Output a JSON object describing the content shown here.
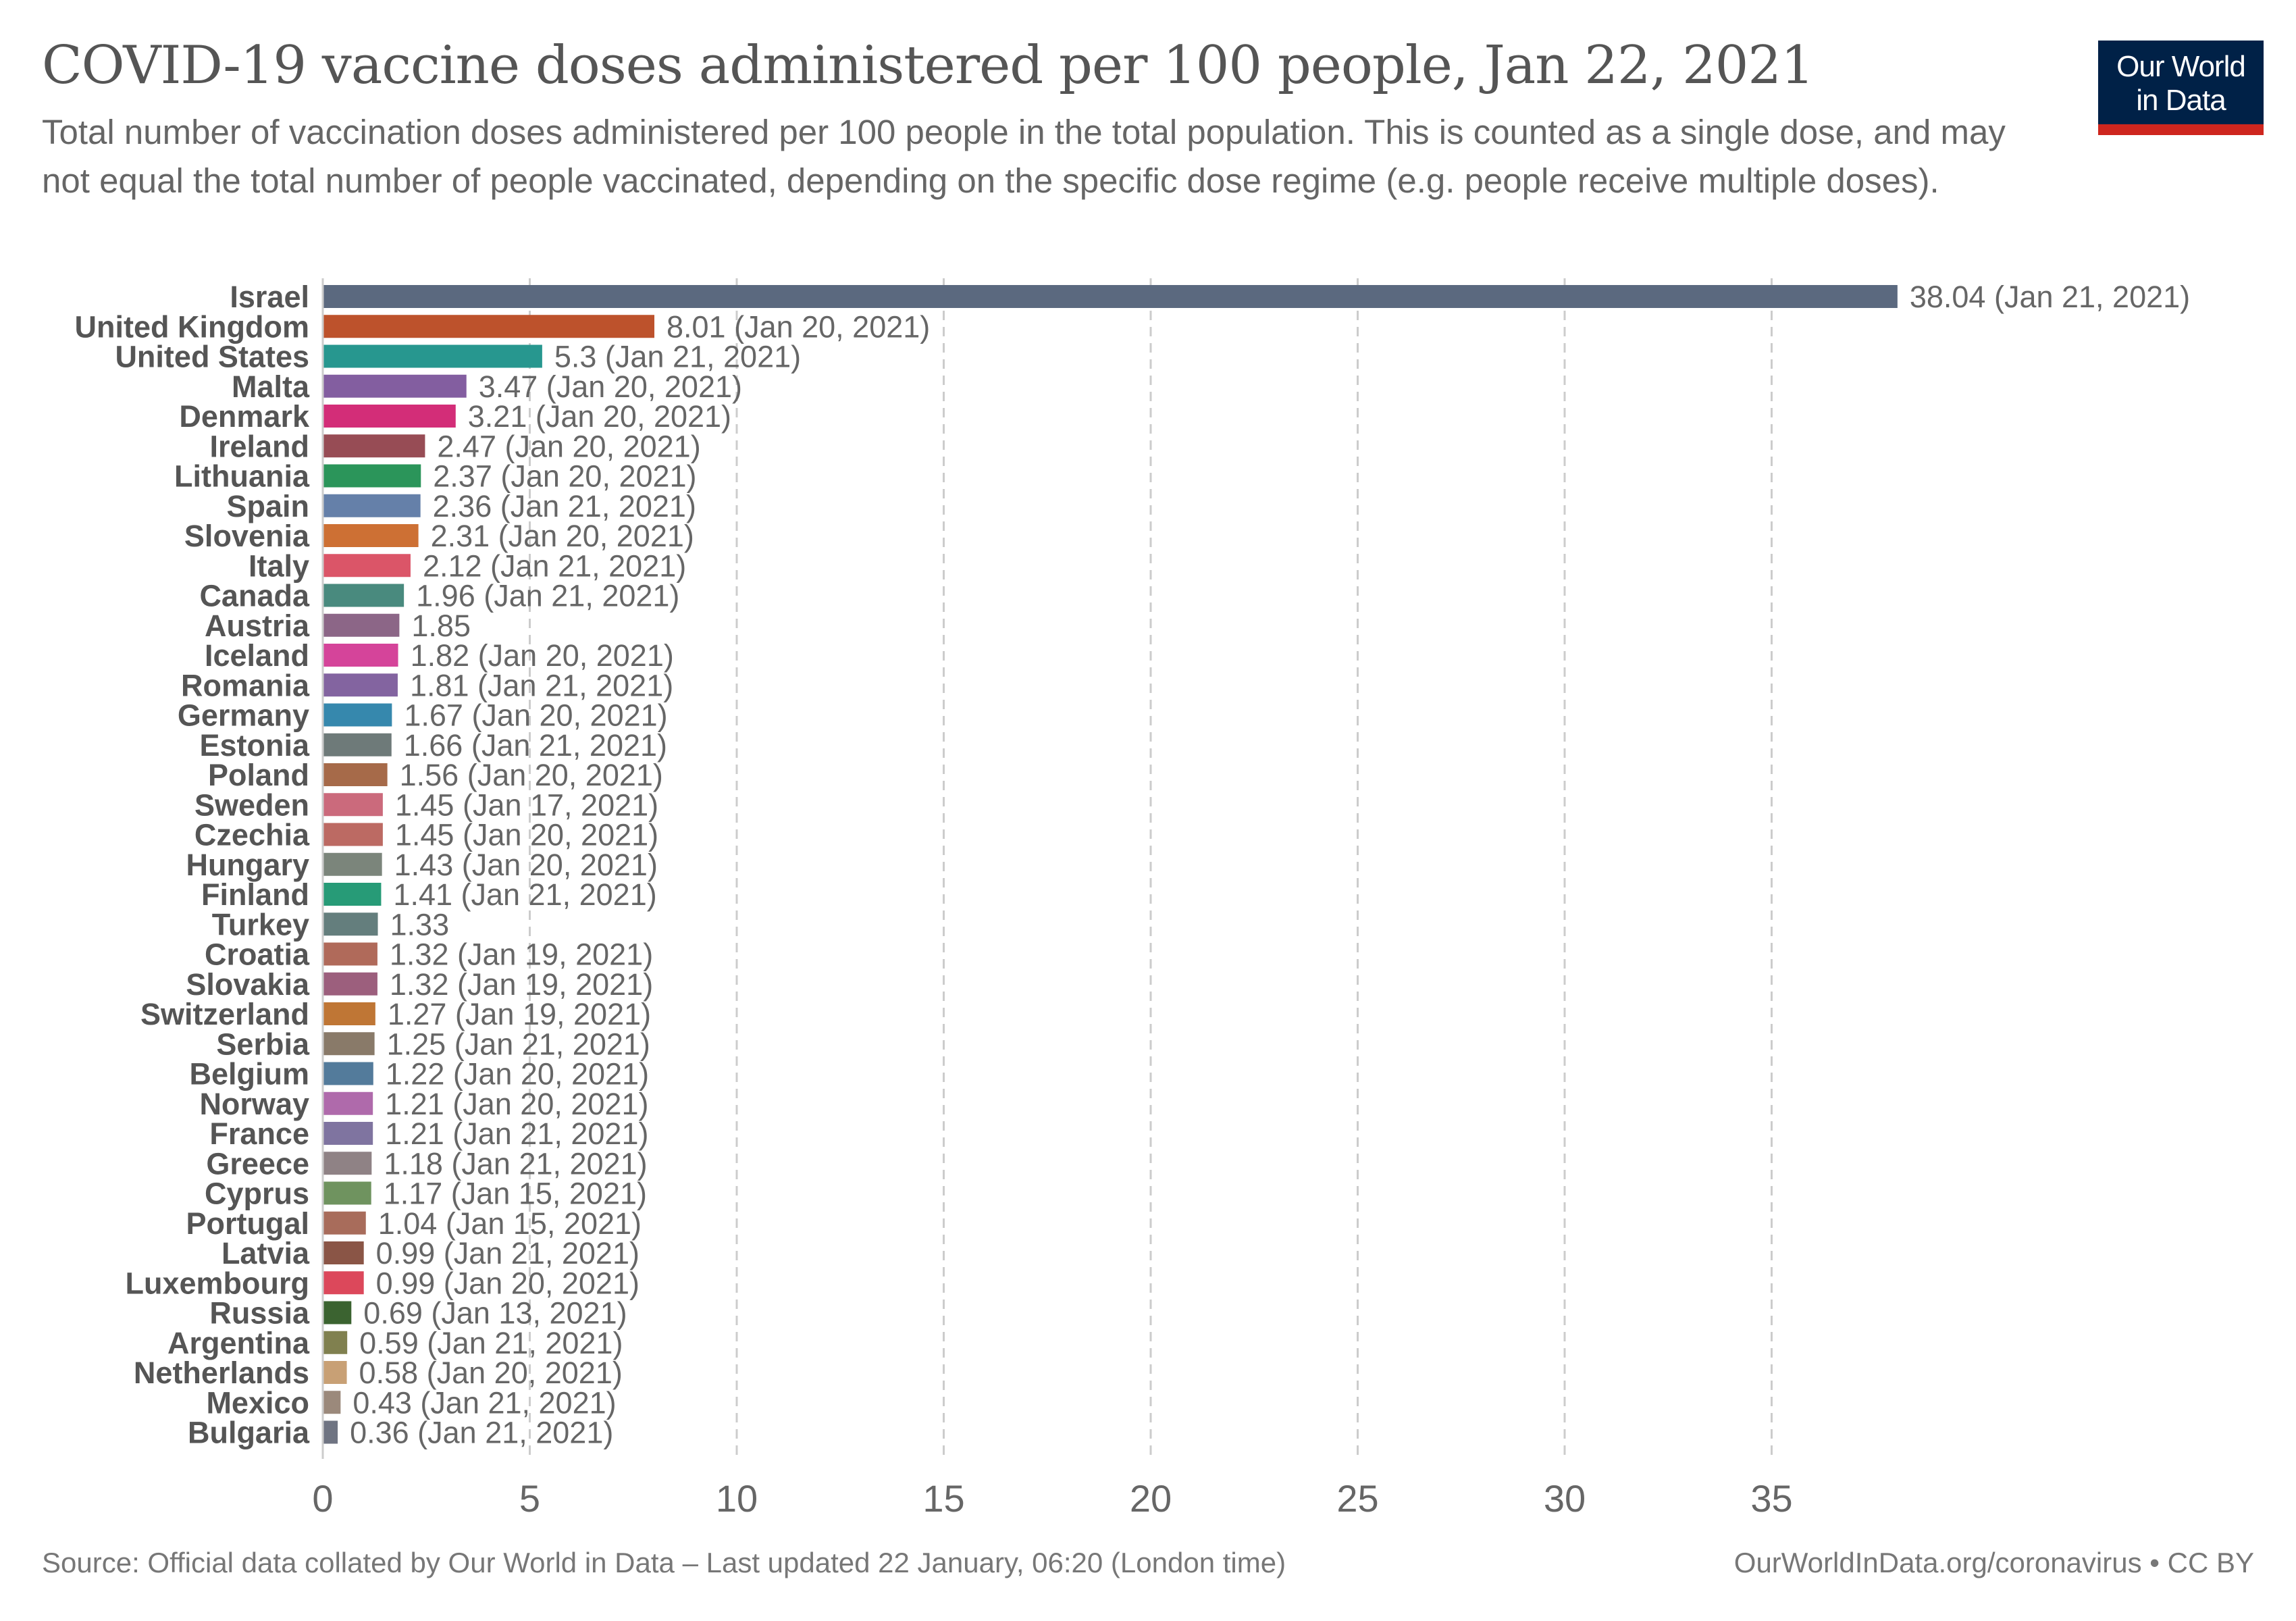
{
  "header": {
    "title": "COVID-19 vaccine doses administered per 100 people, Jan 22, 2021",
    "subtitle": "Total number of vaccination doses administered per 100 people in the total population. This is counted as a single dose, and may not equal the total number of people vaccinated, depending on the specific dose regime (e.g. people receive multiple doses).",
    "logo_line1": "Our World",
    "logo_line2": "in Data",
    "logo_color": "#002147",
    "logo_accent": "#ce261e"
  },
  "footer": {
    "source": "Source: Official data collated by Our World in Data – Last updated 22 January, 06:20 (London time)",
    "credit": "OurWorldInData.org/coronavirus • CC BY"
  },
  "chart_data": {
    "type": "bar",
    "orientation": "horizontal",
    "title": "COVID-19 vaccine doses administered per 100 people, Jan 22, 2021",
    "xlabel": "",
    "ylabel": "",
    "xlim": [
      0,
      38.04
    ],
    "x_ticks": [
      0,
      5,
      10,
      15,
      20,
      25,
      30,
      35
    ],
    "grid": "vertical dashed",
    "categories": [
      "Israel",
      "United Kingdom",
      "United States",
      "Malta",
      "Denmark",
      "Ireland",
      "Lithuania",
      "Spain",
      "Slovenia",
      "Italy",
      "Canada",
      "Austria",
      "Iceland",
      "Romania",
      "Germany",
      "Estonia",
      "Poland",
      "Sweden",
      "Czechia",
      "Hungary",
      "Finland",
      "Turkey",
      "Croatia",
      "Slovakia",
      "Switzerland",
      "Serbia",
      "Belgium",
      "Norway",
      "France",
      "Greece",
      "Cyprus",
      "Portugal",
      "Latvia",
      "Luxembourg",
      "Russia",
      "Argentina",
      "Netherlands",
      "Mexico",
      "Bulgaria"
    ],
    "values": [
      38.04,
      8.01,
      5.3,
      3.47,
      3.21,
      2.47,
      2.37,
      2.36,
      2.31,
      2.12,
      1.96,
      1.85,
      1.82,
      1.81,
      1.67,
      1.66,
      1.56,
      1.45,
      1.45,
      1.43,
      1.41,
      1.33,
      1.32,
      1.32,
      1.27,
      1.25,
      1.22,
      1.21,
      1.21,
      1.18,
      1.17,
      1.04,
      0.99,
      0.99,
      0.69,
      0.59,
      0.58,
      0.43,
      0.36
    ],
    "labels": [
      "38.04 (Jan 21, 2021)",
      "8.01 (Jan 20, 2021)",
      "5.3 (Jan 21, 2021)",
      "3.47 (Jan 20, 2021)",
      "3.21 (Jan 20, 2021)",
      "2.47 (Jan 20, 2021)",
      "2.37 (Jan 20, 2021)",
      "2.36 (Jan 21, 2021)",
      "2.31 (Jan 20, 2021)",
      "2.12 (Jan 21, 2021)",
      "1.96 (Jan 21, 2021)",
      "1.85",
      "1.82 (Jan 20, 2021)",
      "1.81 (Jan 21, 2021)",
      "1.67 (Jan 20, 2021)",
      "1.66 (Jan 21, 2021)",
      "1.56 (Jan 20, 2021)",
      "1.45 (Jan 17, 2021)",
      "1.45 (Jan 20, 2021)",
      "1.43 (Jan 20, 2021)",
      "1.41 (Jan 21, 2021)",
      "1.33",
      "1.32 (Jan 19, 2021)",
      "1.32 (Jan 19, 2021)",
      "1.27 (Jan 19, 2021)",
      "1.25 (Jan 21, 2021)",
      "1.22 (Jan 20, 2021)",
      "1.21 (Jan 20, 2021)",
      "1.21 (Jan 21, 2021)",
      "1.18 (Jan 21, 2021)",
      "1.17 (Jan 15, 2021)",
      "1.04 (Jan 15, 2021)",
      "0.99 (Jan 21, 2021)",
      "0.99 (Jan 20, 2021)",
      "0.69 (Jan 13, 2021)",
      "0.59 (Jan 21, 2021)",
      "0.58 (Jan 20, 2021)",
      "0.43 (Jan 21, 2021)",
      "0.36 (Jan 21, 2021)"
    ],
    "colors": [
      "#5b697f",
      "#bd522c",
      "#27978f",
      "#835ea0",
      "#d32d78",
      "#974c55",
      "#2b955a",
      "#6580a9",
      "#cd7034",
      "#db5568",
      "#498a7e",
      "#8c6687",
      "#d5449a",
      "#8364a0",
      "#3688ad",
      "#6e7a79",
      "#a66a49",
      "#cb6a7c",
      "#bc6a63",
      "#7b857b",
      "#279b77",
      "#647e7d",
      "#b06a5a",
      "#9c5f7d",
      "#bf7635",
      "#897a69",
      "#537b9b",
      "#af6aab",
      "#7f74a0",
      "#8f8285",
      "#6f935f",
      "#a86c5b",
      "#8a5546",
      "#dc485b",
      "#3b6330",
      "#80804f",
      "#c8a075",
      "#9b897b",
      "#6f7482"
    ]
  }
}
